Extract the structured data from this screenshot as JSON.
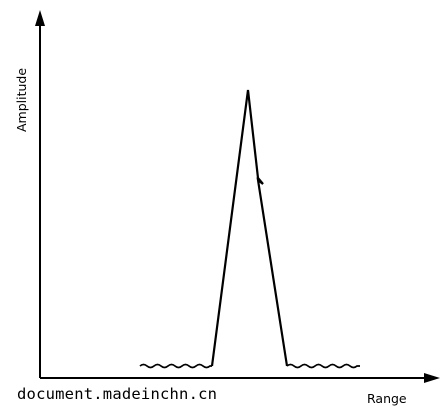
{
  "diagram": {
    "y_axis_label": "Amplitude",
    "x_axis_label": "Range"
  },
  "footer": {
    "watermark": "document.madeinchn.cn"
  }
}
